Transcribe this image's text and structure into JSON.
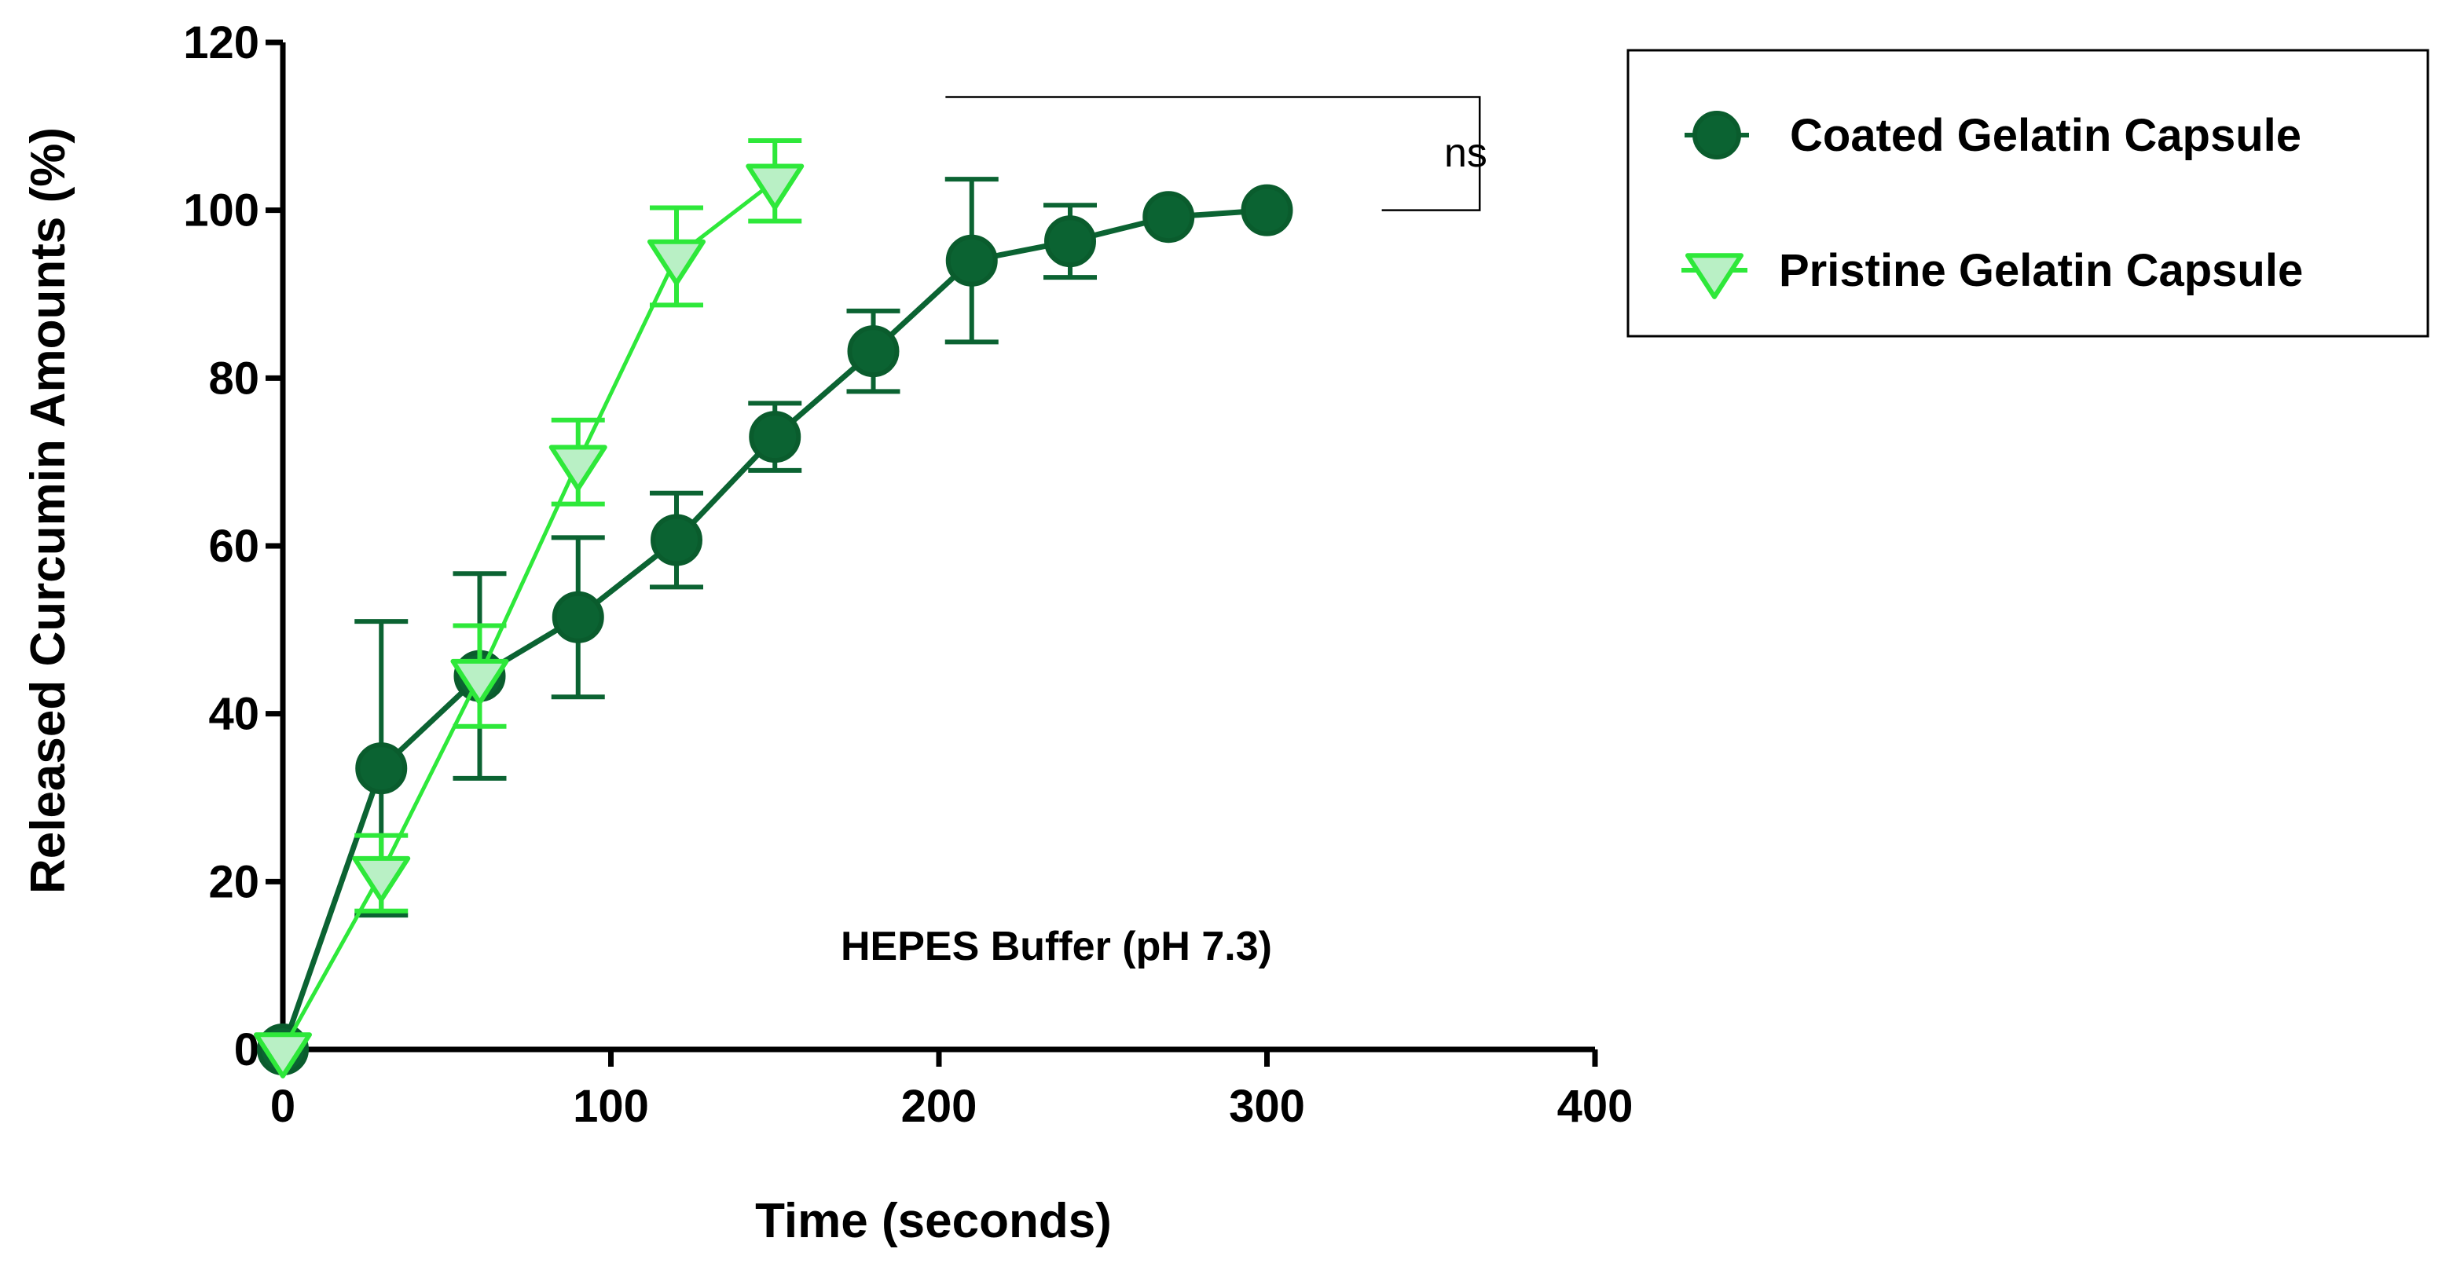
{
  "chart_data": {
    "type": "line",
    "title": "",
    "xlabel": "Time (seconds)",
    "ylabel": "Released Curcumin Amounts (%)",
    "xlim": [
      0,
      400
    ],
    "ylim": [
      0,
      120
    ],
    "xticks": [
      0,
      100,
      200,
      300,
      400
    ],
    "yticks": [
      0,
      20,
      40,
      60,
      80,
      100,
      120
    ],
    "xtick_labels": [
      "0",
      "100",
      "200",
      "300",
      "400"
    ],
    "ytick_labels": [
      "0",
      "20",
      "40",
      "60",
      "80",
      "100",
      "120"
    ],
    "grid": false,
    "legend_position": "top-right outside",
    "series": [
      {
        "name": "Coated Gelatin Capsule",
        "marker": "circle",
        "color": "#0b6332",
        "fill": "#0b6332",
        "x": [
          0,
          30,
          60,
          90,
          120,
          150,
          180,
          210,
          240,
          270,
          300
        ],
        "y": [
          0,
          33.5,
          44.5,
          51.5,
          60.7,
          73,
          83.2,
          94,
          96.3,
          99.2,
          100
        ],
        "err": [
          0,
          17.5,
          12.2,
          9.5,
          5.6,
          4,
          4.8,
          9.7,
          4.3,
          0,
          0
        ]
      },
      {
        "name": "Pristine Gelatin Capsule",
        "marker": "triangle-down",
        "color": "#2ee83a",
        "fill": "#b9f0c5",
        "x": [
          0,
          30,
          60,
          90,
          120,
          150
        ],
        "y": [
          0,
          21,
          44.5,
          70,
          94.5,
          103.5
        ],
        "err": [
          0,
          4.5,
          6,
          5,
          5.8,
          4.8
        ]
      }
    ],
    "annotations": [
      {
        "text": "HEPES Buffer (pH 7.3)",
        "x": 290,
        "y": 12
      }
    ],
    "significance": {
      "label": "ns",
      "y_top": 113.5,
      "y_bottom": 100,
      "x_start": 202,
      "x_end": 350,
      "x_bottom_start": 335
    }
  }
}
